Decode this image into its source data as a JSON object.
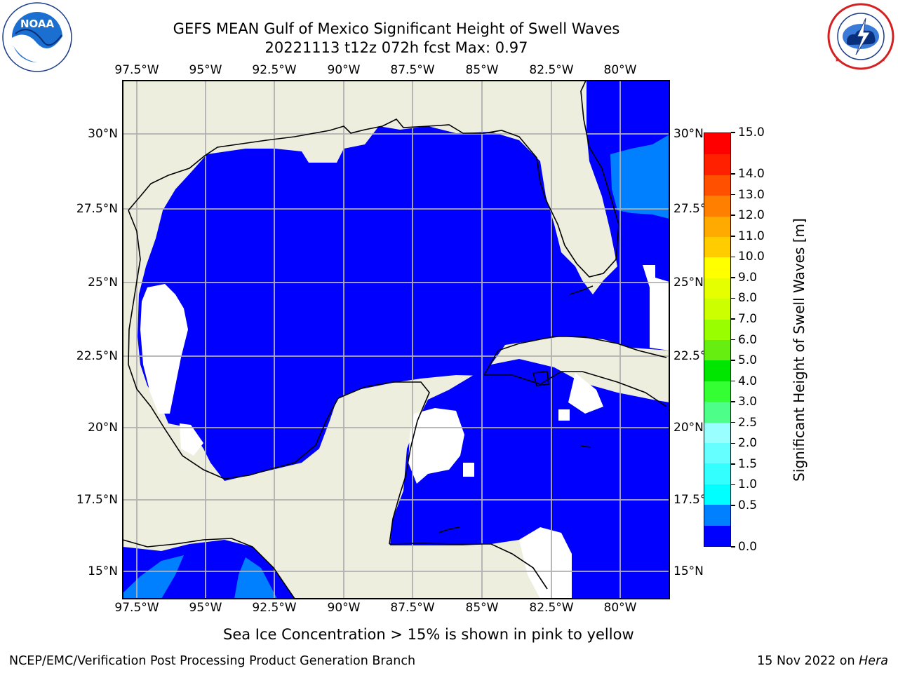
{
  "title": {
    "line1": "GEFS MEAN Gulf of Mexico Significant Height of Swell Waves",
    "line2": "20221113 t12z 072h fcst   Max: 0.97"
  },
  "map": {
    "lon_labels": [
      "97.5°W",
      "95°W",
      "92.5°W",
      "90°W",
      "87.5°W",
      "85°W",
      "82.5°W",
      "80°W"
    ],
    "lat_labels": [
      "30°N",
      "27.5°N",
      "25°N",
      "22.5°N",
      "20°N",
      "17.5°N",
      "15°N"
    ],
    "ocean_color": "#0000ff",
    "land_color": "#eeeedf",
    "swell_0_5_to_1_color": "#0080ff",
    "max_value_m": 0.97
  },
  "colorbar": {
    "title": "Significant Height of Swell Waves [m]",
    "tick_labels": [
      "0.0",
      "0.5",
      "1.0",
      "1.5",
      "2.0",
      "2.5",
      "3.0",
      "4.0",
      "5.0",
      "6.0",
      "7.0",
      "8.0",
      "9.0",
      "10.0",
      "11.0",
      "12.0",
      "13.0",
      "14.0",
      "15.0"
    ],
    "colors": [
      "#0000ff",
      "#0080ff",
      "#00ffff",
      "#33ffff",
      "#66ffff",
      "#99ffff",
      "#4dff88",
      "#33ff33",
      "#00e600",
      "#66ee11",
      "#99ff00",
      "#ccff00",
      "#e6ff00",
      "#ffff00",
      "#ffcc00",
      "#ffaa00",
      "#ff8000",
      "#ff5000",
      "#ff2000",
      "#ff0000"
    ]
  },
  "logos": {
    "noaa_text": "NOAA",
    "noaa_ring": "NATIONAL OCEANIC AND ATMOSPHERIC ADMINISTRATION · U.S. DEPARTMENT OF COMMERCE",
    "nws_ring": "NATIONAL WEATHER SERVICE"
  },
  "footer": {
    "sea_ice_note": "Sea Ice Concentration > 15% is shown in pink to yellow",
    "branch": "NCEP/EMC/Verification Post Processing Product Generation Branch",
    "date_prefix": "15 Nov 2022 on ",
    "machine": "Hera"
  }
}
